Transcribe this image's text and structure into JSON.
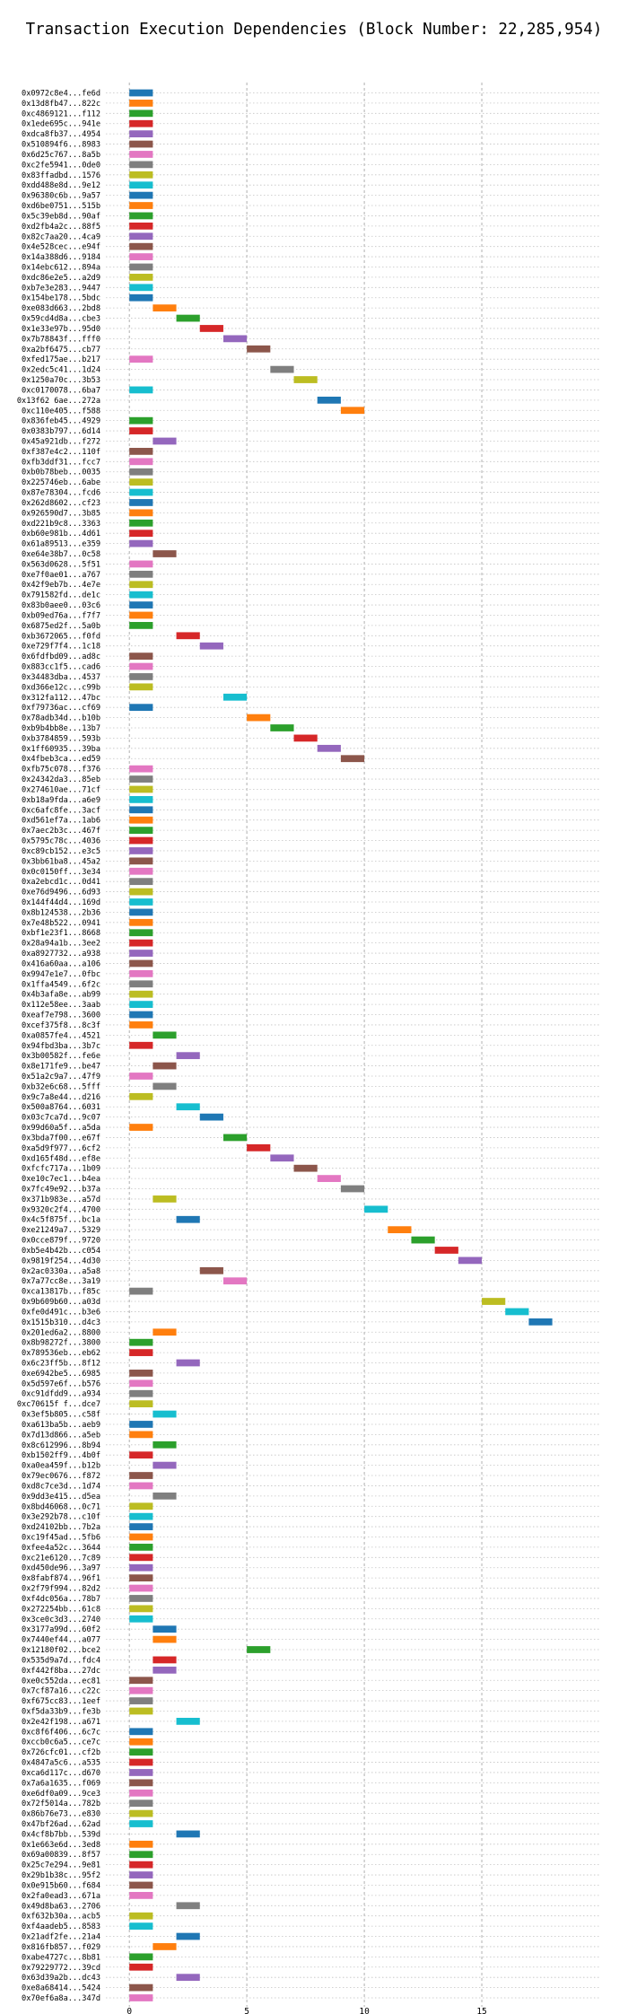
{
  "chart_data": {
    "type": "gantt",
    "title": "Transaction Execution Dependencies (Block Number: 22,285,954)",
    "xlabel": "",
    "ylabel": "",
    "xlim": [
      -1,
      20
    ],
    "x_ticks": [
      0,
      5,
      10,
      15
    ],
    "grid": true,
    "colors": [
      "#1f77b4",
      "#ff7f0e",
      "#2ca02c",
      "#d62728",
      "#9467bd",
      "#8c564b",
      "#e377c2",
      "#7f7f7f",
      "#bcbd22",
      "#17becf"
    ],
    "transactions": [
      {
        "label": "0x0972c8e4...fe6d",
        "start": 0
      },
      {
        "label": "0x13d8fb47...822c",
        "start": 0
      },
      {
        "label": "0xc4869121...f112",
        "start": 0
      },
      {
        "label": "0x1ede695c...941e",
        "start": 0
      },
      {
        "label": "0xdca8fb37...4954",
        "start": 0
      },
      {
        "label": "0x510894f6...8983",
        "start": 0
      },
      {
        "label": "0x6d25c767...8a5b",
        "start": 0
      },
      {
        "label": "0xc2fe5941...0de0",
        "start": 0
      },
      {
        "label": "0x83ffadbd...1576",
        "start": 0
      },
      {
        "label": "0xdd488e8d...9e12",
        "start": 0
      },
      {
        "label": "0x96380c6b...9a57",
        "start": 0
      },
      {
        "label": "0xd6be0751...515b",
        "start": 0
      },
      {
        "label": "0x5c39eb8d...90af",
        "start": 0
      },
      {
        "label": "0xd2fb4a2c...88f5",
        "start": 0
      },
      {
        "label": "0x82c7aa20...4ca9",
        "start": 0
      },
      {
        "label": "0x4e528cec...e94f",
        "start": 0
      },
      {
        "label": "0x14a388d6...9184",
        "start": 0
      },
      {
        "label": "0x14ebc612...894a",
        "start": 0
      },
      {
        "label": "0xdc86e2e5...a2d9",
        "start": 0
      },
      {
        "label": "0xb7e3e283...9447",
        "start": 0
      },
      {
        "label": "0x154be178...5bdc",
        "start": 0
      },
      {
        "label": "0xe083d663...2bd8",
        "start": 1
      },
      {
        "label": "0x59cd4d8a...cbe3",
        "start": 2
      },
      {
        "label": "0x1e33e97b...95d0",
        "start": 3
      },
      {
        "label": "0x7b78843f...fff0",
        "start": 4
      },
      {
        "label": "0xa2bf6475...cb77",
        "start": 5
      },
      {
        "label": "0xfed175ae...b217",
        "start": 0
      },
      {
        "label": "0x2edc5c41...1d24",
        "start": 6
      },
      {
        "label": "0x1250a70c...3b53",
        "start": 7
      },
      {
        "label": "0xc0170078...6ba7",
        "start": 0
      },
      {
        "label": "0x13f62 6ae...272a",
        "start": 8
      },
      {
        "label": "0xc110e405...f588",
        "start": 9
      },
      {
        "label": "0x836feb45...4929",
        "start": 0
      },
      {
        "label": "0x0383b797...6d14",
        "start": 0
      },
      {
        "label": "0x45a921db...f272",
        "start": 1
      },
      {
        "label": "0xf387e4c2...110f",
        "start": 0
      },
      {
        "label": "0xfb3ddf31...fcc7",
        "start": 0
      },
      {
        "label": "0xb0b78beb...0035",
        "start": 0
      },
      {
        "label": "0x225746eb...6abe",
        "start": 0
      },
      {
        "label": "0x87e78304...fcd6",
        "start": 0
      },
      {
        "label": "0x262d8602...cf23",
        "start": 0
      },
      {
        "label": "0x926590d7...3b85",
        "start": 0
      },
      {
        "label": "0xd221b9c8...3363",
        "start": 0
      },
      {
        "label": "0xb60e981b...4d61",
        "start": 0
      },
      {
        "label": "0x61a89513...e359",
        "start": 0
      },
      {
        "label": "0xe64e38b7...0c58",
        "start": 1
      },
      {
        "label": "0x563d0628...5f51",
        "start": 0
      },
      {
        "label": "0xe7f0ae01...a767",
        "start": 0
      },
      {
        "label": "0x42f9eb7b...4e7e",
        "start": 0
      },
      {
        "label": "0x791582fd...de1c",
        "start": 0
      },
      {
        "label": "0x83b0aee0...03c6",
        "start": 0
      },
      {
        "label": "0xb09ed76a...f7f7",
        "start": 0
      },
      {
        "label": "0x6875ed2f...5a0b",
        "start": 0
      },
      {
        "label": "0xb3672065...f0fd",
        "start": 2
      },
      {
        "label": "0xe729f7f4...1c18",
        "start": 3
      },
      {
        "label": "0x6fdfbd09...ad8c",
        "start": 0
      },
      {
        "label": "0x883cc1f5...cad6",
        "start": 0
      },
      {
        "label": "0x34483dba...4537",
        "start": 0
      },
      {
        "label": "0xd366e12c...c99b",
        "start": 0
      },
      {
        "label": "0x312fa112...47bc",
        "start": 4
      },
      {
        "label": "0xf79736ac...cf69",
        "start": 0
      },
      {
        "label": "0x78adb34d...b10b",
        "start": 5
      },
      {
        "label": "0xb9b4bb8e...13b7",
        "start": 6
      },
      {
        "label": "0xb3784859...593b",
        "start": 7
      },
      {
        "label": "0x1ff60935...39ba",
        "start": 8
      },
      {
        "label": "0x4fbeb3ca...ed59",
        "start": 9
      },
      {
        "label": "0xfb75c078...f376",
        "start": 0
      },
      {
        "label": "0x24342da3...85eb",
        "start": 0
      },
      {
        "label": "0x274610ae...71cf",
        "start": 0
      },
      {
        "label": "0xb18a9fda...a6e9",
        "start": 0
      },
      {
        "label": "0xc6afc8fe...3acf",
        "start": 0
      },
      {
        "label": "0xd561ef7a...1ab6",
        "start": 0
      },
      {
        "label": "0x7aec2b3c...467f",
        "start": 0
      },
      {
        "label": "0x5795c78c...4036",
        "start": 0
      },
      {
        "label": "0xc89cb152...e3c5",
        "start": 0
      },
      {
        "label": "0x3bb61ba8...45a2",
        "start": 0
      },
      {
        "label": "0x0c0150ff...3e34",
        "start": 0
      },
      {
        "label": "0xa2ebcd1c...0d41",
        "start": 0
      },
      {
        "label": "0xe76d9496...6d93",
        "start": 0
      },
      {
        "label": "0x144f44d4...169d",
        "start": 0
      },
      {
        "label": "0x8b124538...2b36",
        "start": 0
      },
      {
        "label": "0x7e48b522...0941",
        "start": 0
      },
      {
        "label": "0xbf1e23f1...8668",
        "start": 0
      },
      {
        "label": "0x28a94a1b...3ee2",
        "start": 0
      },
      {
        "label": "0xa8927732...a938",
        "start": 0
      },
      {
        "label": "0x416a60aa...a106",
        "start": 0
      },
      {
        "label": "0x9947e1e7...0fbc",
        "start": 0
      },
      {
        "label": "0x1ffa4549...6f2c",
        "start": 0
      },
      {
        "label": "0x4b3afa8e...ab99",
        "start": 0
      },
      {
        "label": "0x112e58ee...3aab",
        "start": 0
      },
      {
        "label": "0xeaf7e798...3600",
        "start": 0
      },
      {
        "label": "0xcef375f8...8c3f",
        "start": 0
      },
      {
        "label": "0xa0857fe4...4521",
        "start": 1
      },
      {
        "label": "0x94fbd3ba...3b7c",
        "start": 0
      },
      {
        "label": "0x3b00582f...fe6e",
        "start": 2
      },
      {
        "label": "0x8e171fe9...be47",
        "start": 1
      },
      {
        "label": "0x51a2c9a7...47f9",
        "start": 0
      },
      {
        "label": "0xb32e6c68...5fff",
        "start": 1
      },
      {
        "label": "0x9c7a8e44...d216",
        "start": 0
      },
      {
        "label": "0x500a8764...6031",
        "start": 2
      },
      {
        "label": "0x03c7ca7d...9c07",
        "start": 3
      },
      {
        "label": "0x99d60a5f...a5da",
        "start": 0
      },
      {
        "label": "0x3bda7f00...e67f",
        "start": 4
      },
      {
        "label": "0xa5d9f977...6cf2",
        "start": 5
      },
      {
        "label": "0xd165f48d...ef8e",
        "start": 6
      },
      {
        "label": "0xfcfc717a...1b09",
        "start": 7
      },
      {
        "label": "0xe10c7ec1...b4ea",
        "start": 8
      },
      {
        "label": "0x7fc49e92...b37a",
        "start": 9
      },
      {
        "label": "0x371b983e...a57d",
        "start": 1
      },
      {
        "label": "0x9320c2f4...4700",
        "start": 10
      },
      {
        "label": "0x4c5f875f...bc1a",
        "start": 2
      },
      {
        "label": "0xe21249a7...5329",
        "start": 11
      },
      {
        "label": "0x0cce879f...9720",
        "start": 12
      },
      {
        "label": "0xb5e4b42b...c054",
        "start": 13
      },
      {
        "label": "0x9819f254...4d30",
        "start": 14
      },
      {
        "label": "0x2ac0330a...a5a8",
        "start": 3
      },
      {
        "label": "0x7a77cc8e...3a19",
        "start": 4
      },
      {
        "label": "0xca13817b...f85c",
        "start": 0
      },
      {
        "label": "0x9b609b60...a03d",
        "start": 15
      },
      {
        "label": "0xfe0d491c...b3e6",
        "start": 16
      },
      {
        "label": "0x1515b310...d4c3",
        "start": 17
      },
      {
        "label": "0x201ed6a2...8800",
        "start": 1
      },
      {
        "label": "0x8b98272f...3800",
        "start": 0
      },
      {
        "label": "0x789536eb...eb62",
        "start": 0
      },
      {
        "label": "0x6c23ff5b...8f12",
        "start": 2
      },
      {
        "label": "0xe6942be5...6985",
        "start": 0
      },
      {
        "label": "0x5d597e6f...b576",
        "start": 0
      },
      {
        "label": "0xc91dfdd9...a934",
        "start": 0
      },
      {
        "label": "0xc70615f f...dce7",
        "start": 0
      },
      {
        "label": "0x3ef5b805...c58f",
        "start": 1
      },
      {
        "label": "0xa613ba5b...aeb9",
        "start": 0
      },
      {
        "label": "0x7d13d866...a5eb",
        "start": 0
      },
      {
        "label": "0x8c612996...8b94",
        "start": 1
      },
      {
        "label": "0xb1502ff9...4b0f",
        "start": 0
      },
      {
        "label": "0xa0ea459f...b12b",
        "start": 1
      },
      {
        "label": "0x79ec0676...f872",
        "start": 0
      },
      {
        "label": "0xd8c7ce3d...1d74",
        "start": 0
      },
      {
        "label": "0x9dd3e415...d5ea",
        "start": 1
      },
      {
        "label": "0x8bd46068...0c71",
        "start": 0
      },
      {
        "label": "0x3e292b78...c10f",
        "start": 0
      },
      {
        "label": "0xd24102bb...7b2a",
        "start": 0
      },
      {
        "label": "0xc19f45ad...5fb6",
        "start": 0
      },
      {
        "label": "0xfee4a52c...3644",
        "start": 0
      },
      {
        "label": "0xc21e6120...7c89",
        "start": 0
      },
      {
        "label": "0xd450de96...3a97",
        "start": 0
      },
      {
        "label": "0x8fabf874...96f1",
        "start": 0
      },
      {
        "label": "0x2f79f994...82d2",
        "start": 0
      },
      {
        "label": "0xf4dc056a...78b7",
        "start": 0
      },
      {
        "label": "0x272254bb...61c8",
        "start": 0
      },
      {
        "label": "0x3ce0c3d3...2740",
        "start": 0
      },
      {
        "label": "0x3177a99d...60f2",
        "start": 1
      },
      {
        "label": "0x7440ef44...a077",
        "start": 1
      },
      {
        "label": "0x12180f02...bce2",
        "start": 5
      },
      {
        "label": "0x535d9a7d...fdc4",
        "start": 1
      },
      {
        "label": "0xf442f8ba...27dc",
        "start": 1
      },
      {
        "label": "0xe0c552da...ec81",
        "start": 0
      },
      {
        "label": "0x7cf87a16...c22c",
        "start": 0
      },
      {
        "label": "0xf675cc83...1eef",
        "start": 0
      },
      {
        "label": "0xf5da33b9...fe3b",
        "start": 0
      },
      {
        "label": "0x2e42f198...a671",
        "start": 2
      },
      {
        "label": "0xc8f6f406...6c7c",
        "start": 0
      },
      {
        "label": "0xccb0c6a5...ce7c",
        "start": 0
      },
      {
        "label": "0x726cfc01...cf2b",
        "start": 0
      },
      {
        "label": "0x4847a5c6...a535",
        "start": 0
      },
      {
        "label": "0xca6d117c...d670",
        "start": 0
      },
      {
        "label": "0x7a6a1635...f069",
        "start": 0
      },
      {
        "label": "0xe6df0a09...9ce3",
        "start": 0
      },
      {
        "label": "0x72f5014a...782b",
        "start": 0
      },
      {
        "label": "0x86b76e73...e830",
        "start": 0
      },
      {
        "label": "0x47bf26ad...62ad",
        "start": 0
      },
      {
        "label": "0x4cf8b7bb...539d",
        "start": 2
      },
      {
        "label": "0x1e663e6d...3ed8",
        "start": 0
      },
      {
        "label": "0x69a00839...8f57",
        "start": 0
      },
      {
        "label": "0x25c7e294...9e81",
        "start": 0
      },
      {
        "label": "0x29b1b38c...95f2",
        "start": 0
      },
      {
        "label": "0x0e915b60...f684",
        "start": 0
      },
      {
        "label": "0x2fa0ead3...671a",
        "start": 0
      },
      {
        "label": "0x49d8ba63...2706",
        "start": 2
      },
      {
        "label": "0xf632b30a...acb5",
        "start": 0
      },
      {
        "label": "0xf4aadeb5...8583",
        "start": 0
      },
      {
        "label": "0x21adf2fe...21a4",
        "start": 2
      },
      {
        "label": "0x816fb857...f029",
        "start": 1
      },
      {
        "label": "0xabe4727c...8b81",
        "start": 0
      },
      {
        "label": "0x79229772...39cd",
        "start": 0
      },
      {
        "label": "0x63d39a2b...dc43",
        "start": 2
      },
      {
        "label": "0xe8a68414...5424",
        "start": 0
      },
      {
        "label": "0x70ef6a8a...347d",
        "start": 0
      }
    ]
  }
}
